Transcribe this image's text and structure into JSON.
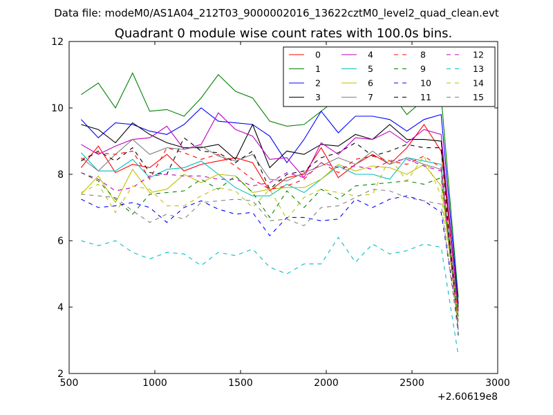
{
  "figure": {
    "suptitle": "Data file: modeM0/AS1A04_212T03_9000002016_13622cztM0_level2_quad_clean.evt"
  },
  "chart_data": {
    "type": "line",
    "title": "Quadrant 0 module wise count rates with 100.0s bins.",
    "xlabel": "",
    "ylabel": "",
    "xlim": [
      500,
      3000
    ],
    "ylim": [
      2,
      12
    ],
    "x_ticks": [
      500,
      1000,
      1500,
      2000,
      2500,
      3000
    ],
    "y_ticks": [
      2,
      4,
      6,
      8,
      10,
      12
    ],
    "x_offset_label": "+2.60619e8",
    "grid": false,
    "legend_position": "top-right",
    "legend_columns": 4,
    "x": [
      570,
      670,
      770,
      870,
      970,
      1070,
      1170,
      1270,
      1370,
      1470,
      1570,
      1670,
      1770,
      1870,
      1970,
      2070,
      2170,
      2270,
      2370,
      2470,
      2570,
      2670,
      2770
    ],
    "series": [
      {
        "name": "0",
        "color": "#ff0000",
        "dash": "solid",
        "values": [
          8.2,
          8.85,
          8.05,
          8.3,
          8.2,
          8.6,
          8.1,
          8.3,
          8.4,
          8.5,
          8.35,
          7.5,
          7.9,
          8.0,
          8.8,
          7.9,
          8.3,
          8.6,
          8.3,
          8.8,
          9.5,
          8.7,
          4.0
        ]
      },
      {
        "name": "1",
        "color": "#008000",
        "dash": "solid",
        "values": [
          10.4,
          10.75,
          10.0,
          11.05,
          9.9,
          9.95,
          9.75,
          10.3,
          11.0,
          10.5,
          10.3,
          9.6,
          9.45,
          9.5,
          9.9,
          10.3,
          10.85,
          10.7,
          10.5,
          9.8,
          10.25,
          10.35,
          4.3
        ]
      },
      {
        "name": "2",
        "color": "#0000ff",
        "dash": "solid",
        "values": [
          9.65,
          9.1,
          9.55,
          9.5,
          9.3,
          9.2,
          9.5,
          10.0,
          9.6,
          9.55,
          9.5,
          9.15,
          8.35,
          9.05,
          9.9,
          9.25,
          9.75,
          9.75,
          9.65,
          9.3,
          9.65,
          9.8,
          4.1
        ]
      },
      {
        "name": "3",
        "color": "#000000",
        "dash": "solid",
        "values": [
          9.5,
          9.35,
          8.95,
          9.55,
          9.2,
          8.95,
          8.8,
          8.8,
          8.9,
          8.45,
          9.5,
          8.2,
          8.7,
          8.6,
          8.9,
          8.85,
          9.2,
          9.05,
          9.5,
          9.05,
          9.05,
          9.0,
          4.0
        ]
      },
      {
        "name": "4",
        "color": "#bf00bf",
        "dash": "solid",
        "values": [
          8.9,
          8.6,
          8.85,
          9.05,
          9.1,
          9.45,
          8.75,
          8.9,
          9.85,
          9.35,
          9.15,
          8.45,
          8.5,
          7.9,
          8.95,
          8.6,
          9.1,
          9.05,
          9.3,
          8.95,
          9.35,
          9.2,
          3.9
        ]
      },
      {
        "name": "5",
        "color": "#00bfbf",
        "dash": "solid",
        "values": [
          8.65,
          8.1,
          8.1,
          8.45,
          7.9,
          8.15,
          8.2,
          8.4,
          8.0,
          7.6,
          7.35,
          7.35,
          7.7,
          7.45,
          7.85,
          8.25,
          8.0,
          8.0,
          7.85,
          8.5,
          8.4,
          8.3,
          3.3
        ]
      },
      {
        "name": "6",
        "color": "#bfbf00",
        "dash": "solid",
        "values": [
          7.4,
          7.95,
          7.15,
          8.15,
          7.45,
          7.55,
          8.0,
          7.75,
          8.0,
          7.95,
          7.45,
          7.55,
          7.6,
          7.6,
          7.85,
          8.3,
          8.1,
          8.25,
          8.2,
          8.0,
          8.3,
          7.65,
          3.6
        ]
      },
      {
        "name": "7",
        "color": "#808080",
        "dash": "solid",
        "values": [
          8.5,
          8.1,
          8.6,
          9.05,
          8.6,
          8.8,
          8.75,
          8.85,
          8.55,
          8.4,
          8.6,
          7.85,
          7.8,
          8.05,
          8.25,
          8.5,
          8.3,
          8.7,
          8.3,
          8.5,
          8.3,
          8.15,
          3.85
        ]
      },
      {
        "name": "8",
        "color": "#ff0000",
        "dash": "dashed",
        "values": [
          8.45,
          8.65,
          8.6,
          8.7,
          7.85,
          8.8,
          8.65,
          8.45,
          8.6,
          8.25,
          7.85,
          7.55,
          7.65,
          7.85,
          8.35,
          8.05,
          8.45,
          8.55,
          8.4,
          8.3,
          8.55,
          8.2,
          3.75
        ]
      },
      {
        "name": "9",
        "color": "#008000",
        "dash": "dashed",
        "values": [
          8.05,
          7.8,
          7.25,
          6.8,
          7.4,
          7.45,
          7.5,
          7.85,
          7.55,
          7.95,
          7.45,
          6.7,
          7.5,
          7.0,
          7.55,
          7.25,
          7.65,
          7.7,
          7.75,
          7.8,
          7.7,
          7.9,
          3.7
        ]
      },
      {
        "name": "10",
        "color": "#0000ff",
        "dash": "dashed",
        "values": [
          7.25,
          7.0,
          7.05,
          7.15,
          7.0,
          6.55,
          7.0,
          7.2,
          6.95,
          6.8,
          6.85,
          6.15,
          6.7,
          6.7,
          6.6,
          6.65,
          7.25,
          7.0,
          7.25,
          7.35,
          7.2,
          6.85,
          3.5
        ]
      },
      {
        "name": "11",
        "color": "#000000",
        "dash": "dashed",
        "values": [
          8.4,
          8.7,
          8.4,
          8.8,
          8.05,
          8.0,
          9.1,
          8.7,
          8.65,
          8.35,
          8.7,
          7.55,
          8.0,
          8.1,
          8.5,
          8.65,
          8.95,
          8.55,
          8.7,
          8.9,
          8.8,
          8.8,
          3.15
        ]
      },
      {
        "name": "12",
        "color": "#bf00bf",
        "dash": "dashed",
        "values": [
          8.05,
          7.85,
          7.5,
          7.6,
          7.95,
          8.0,
          7.95,
          7.95,
          7.85,
          7.85,
          7.65,
          7.75,
          8.05,
          7.9,
          8.35,
          8.2,
          8.25,
          8.15,
          8.4,
          8.45,
          8.25,
          8.1,
          3.3
        ]
      },
      {
        "name": "13",
        "color": "#00bfbf",
        "dash": "dashed",
        "values": [
          6.0,
          5.85,
          6.0,
          5.65,
          5.45,
          5.65,
          5.6,
          5.25,
          5.65,
          5.55,
          5.75,
          5.2,
          5.0,
          5.3,
          5.3,
          6.1,
          5.35,
          5.9,
          5.6,
          5.7,
          5.9,
          5.8,
          2.55
        ]
      },
      {
        "name": "14",
        "color": "#bfbf00",
        "dash": "dashed",
        "values": [
          7.45,
          7.7,
          6.85,
          7.65,
          7.55,
          7.05,
          7.05,
          7.35,
          7.6,
          7.5,
          7.0,
          7.55,
          6.65,
          7.3,
          7.55,
          7.45,
          7.35,
          7.4,
          8.5,
          7.8,
          8.55,
          7.35,
          3.4
        ]
      },
      {
        "name": "15",
        "color": "#808080",
        "dash": "dashed",
        "values": [
          7.4,
          7.35,
          7.3,
          6.9,
          6.55,
          6.8,
          6.65,
          7.15,
          7.2,
          7.25,
          7.2,
          6.6,
          6.65,
          6.45,
          7.0,
          7.05,
          7.3,
          7.55,
          7.5,
          7.3,
          7.2,
          7.1,
          3.2
        ]
      }
    ]
  }
}
